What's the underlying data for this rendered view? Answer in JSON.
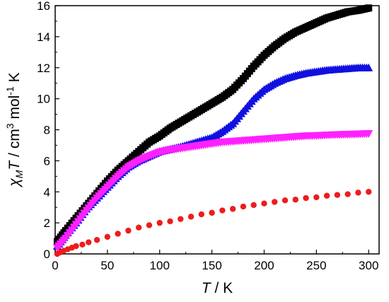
{
  "chart_data": {
    "type": "scatter",
    "xlabel": {
      "italic": "T",
      "rest": " / K"
    },
    "ylabel": {
      "symbol": "χ",
      "sub": "M",
      "italic": "T",
      "mid": " / cm",
      "sup1": "3",
      "mol": " mol",
      "sup2": "-1",
      "end": " K"
    },
    "xlim": [
      0,
      310
    ],
    "ylim": [
      0,
      16
    ],
    "xticks": [
      0,
      50,
      100,
      150,
      200,
      250,
      300
    ],
    "yticks": [
      0,
      2,
      4,
      6,
      8,
      10,
      12,
      14,
      16
    ],
    "grid": false,
    "legend": "none",
    "series": [
      {
        "marker": "square",
        "color": "#000000",
        "points": [
          [
            2,
            0.8
          ],
          [
            10,
            1.5
          ],
          [
            20,
            2.3
          ],
          [
            30,
            3.1
          ],
          [
            40,
            3.9
          ],
          [
            50,
            4.7
          ],
          [
            60,
            5.4
          ],
          [
            70,
            6.0
          ],
          [
            80,
            6.6
          ],
          [
            90,
            7.2
          ],
          [
            100,
            7.6
          ],
          [
            110,
            8.1
          ],
          [
            120,
            8.5
          ],
          [
            130,
            8.9
          ],
          [
            140,
            9.3
          ],
          [
            150,
            9.7
          ],
          [
            160,
            10.1
          ],
          [
            170,
            10.6
          ],
          [
            180,
            11.3
          ],
          [
            190,
            12.1
          ],
          [
            200,
            12.8
          ],
          [
            210,
            13.4
          ],
          [
            220,
            13.9
          ],
          [
            230,
            14.3
          ],
          [
            240,
            14.6
          ],
          [
            250,
            14.9
          ],
          [
            260,
            15.2
          ],
          [
            270,
            15.4
          ],
          [
            280,
            15.6
          ],
          [
            290,
            15.7
          ],
          [
            300,
            15.85
          ]
        ]
      },
      {
        "marker": "triangle-up",
        "color": "#1010e0",
        "points": [
          [
            2,
            0.5
          ],
          [
            10,
            1.2
          ],
          [
            20,
            2.0
          ],
          [
            30,
            2.9
          ],
          [
            40,
            3.6
          ],
          [
            50,
            4.3
          ],
          [
            60,
            5.0
          ],
          [
            70,
            5.6
          ],
          [
            80,
            6.0
          ],
          [
            90,
            6.3
          ],
          [
            100,
            6.6
          ],
          [
            110,
            6.75
          ],
          [
            120,
            6.9
          ],
          [
            130,
            7.1
          ],
          [
            140,
            7.3
          ],
          [
            150,
            7.5
          ],
          [
            160,
            7.9
          ],
          [
            170,
            8.4
          ],
          [
            180,
            9.2
          ],
          [
            190,
            10.0
          ],
          [
            200,
            10.6
          ],
          [
            210,
            11.0
          ],
          [
            220,
            11.3
          ],
          [
            230,
            11.5
          ],
          [
            240,
            11.65
          ],
          [
            250,
            11.75
          ],
          [
            260,
            11.85
          ],
          [
            270,
            11.9
          ],
          [
            280,
            11.95
          ],
          [
            290,
            12.0
          ],
          [
            300,
            12.0
          ]
        ]
      },
      {
        "marker": "triangle-down",
        "color": "#ff20ff",
        "points": [
          [
            2,
            0.4
          ],
          [
            10,
            1.0
          ],
          [
            20,
            1.9
          ],
          [
            30,
            2.8
          ],
          [
            40,
            3.6
          ],
          [
            50,
            4.3
          ],
          [
            60,
            5.0
          ],
          [
            70,
            5.6
          ],
          [
            80,
            6.0
          ],
          [
            90,
            6.3
          ],
          [
            100,
            6.55
          ],
          [
            110,
            6.7
          ],
          [
            120,
            6.8
          ],
          [
            130,
            6.9
          ],
          [
            140,
            7.0
          ],
          [
            150,
            7.1
          ],
          [
            160,
            7.2
          ],
          [
            170,
            7.25
          ],
          [
            180,
            7.3
          ],
          [
            190,
            7.35
          ],
          [
            200,
            7.4
          ],
          [
            210,
            7.45
          ],
          [
            220,
            7.5
          ],
          [
            230,
            7.55
          ],
          [
            240,
            7.6
          ],
          [
            250,
            7.62
          ],
          [
            260,
            7.65
          ],
          [
            270,
            7.68
          ],
          [
            280,
            7.7
          ],
          [
            290,
            7.72
          ],
          [
            300,
            7.75
          ]
        ]
      },
      {
        "marker": "circle",
        "color": "#ee1c1c",
        "points": [
          [
            2,
            0.0
          ],
          [
            5,
            0.1
          ],
          [
            8,
            0.2
          ],
          [
            12,
            0.3
          ],
          [
            16,
            0.4
          ],
          [
            20,
            0.5
          ],
          [
            26,
            0.6
          ],
          [
            32,
            0.75
          ],
          [
            40,
            0.9
          ],
          [
            50,
            1.1
          ],
          [
            60,
            1.3
          ],
          [
            70,
            1.5
          ],
          [
            80,
            1.7
          ],
          [
            90,
            1.85
          ],
          [
            100,
            2.0
          ],
          [
            110,
            2.1
          ],
          [
            120,
            2.25
          ],
          [
            130,
            2.4
          ],
          [
            140,
            2.55
          ],
          [
            150,
            2.65
          ],
          [
            160,
            2.8
          ],
          [
            170,
            2.9
          ],
          [
            180,
            3.05
          ],
          [
            190,
            3.15
          ],
          [
            200,
            3.25
          ],
          [
            210,
            3.35
          ],
          [
            220,
            3.45
          ],
          [
            230,
            3.5
          ],
          [
            240,
            3.6
          ],
          [
            250,
            3.65
          ],
          [
            260,
            3.75
          ],
          [
            270,
            3.8
          ],
          [
            280,
            3.85
          ],
          [
            290,
            3.95
          ],
          [
            300,
            4.0
          ]
        ]
      }
    ]
  }
}
